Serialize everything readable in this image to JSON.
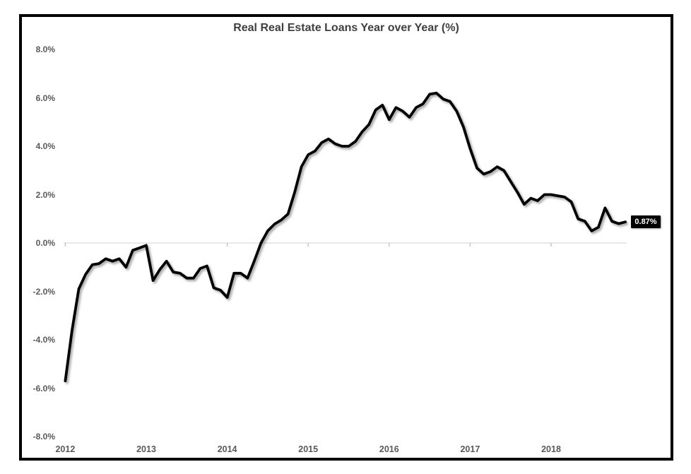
{
  "title": "Real Real Estate Loans Year over Year (%)",
  "end_label": "0.87%",
  "colors": {
    "line": "#000000",
    "title_text": "#404040",
    "axis_text": "#595959",
    "zero_gridline": "#d9d9d9",
    "tick": "#bfbfbf",
    "label_bg": "#000000",
    "label_text": "#ffffff",
    "border": "#000000",
    "background": "#ffffff"
  },
  "chart_data": {
    "type": "line",
    "title": "Real Real Estate Loans Year over Year (%)",
    "frequency": "monthly",
    "x_start": "2012-01",
    "x_end": "2018-12",
    "x_tick_labels": [
      "2012",
      "2013",
      "2014",
      "2015",
      "2016",
      "2017",
      "2018"
    ],
    "y_tick_labels": [
      "8.0%",
      "6.0%",
      "4.0%",
      "2.0%",
      "0.0%",
      "-2.0%",
      "-4.0%",
      "-6.0%",
      "-8.0%"
    ],
    "y_tick_values": [
      8,
      6,
      4,
      2,
      0,
      -2,
      -4,
      -6,
      -8
    ],
    "ylim": [
      -8,
      8
    ],
    "gridlines": "zero-line-only",
    "legend": "none",
    "last_point_label": "0.87%",
    "series": [
      {
        "name": "Real Real Estate Loans YoY %",
        "values": [
          -5.7,
          -3.6,
          -1.9,
          -1.3,
          -0.9,
          -0.85,
          -0.65,
          -0.75,
          -0.65,
          -1.0,
          -0.3,
          -0.2,
          -0.1,
          -1.55,
          -1.1,
          -0.75,
          -1.2,
          -1.25,
          -1.45,
          -1.45,
          -1.05,
          -0.95,
          -1.85,
          -1.95,
          -2.25,
          -1.25,
          -1.25,
          -1.45,
          -0.75,
          0.0,
          0.5,
          0.78,
          0.95,
          1.2,
          2.1,
          3.15,
          3.65,
          3.8,
          4.15,
          4.3,
          4.1,
          4.0,
          4.0,
          4.2,
          4.6,
          4.9,
          5.5,
          5.7,
          5.1,
          5.6,
          5.45,
          5.2,
          5.6,
          5.75,
          6.15,
          6.2,
          5.95,
          5.85,
          5.45,
          4.8,
          3.9,
          3.1,
          2.85,
          2.95,
          3.15,
          3.0,
          2.55,
          2.1,
          1.6,
          1.85,
          1.75,
          2.0,
          2.0,
          1.95,
          1.9,
          1.7,
          1.0,
          0.9,
          0.5,
          0.65,
          1.45,
          0.9,
          0.8,
          0.87
        ]
      }
    ]
  }
}
